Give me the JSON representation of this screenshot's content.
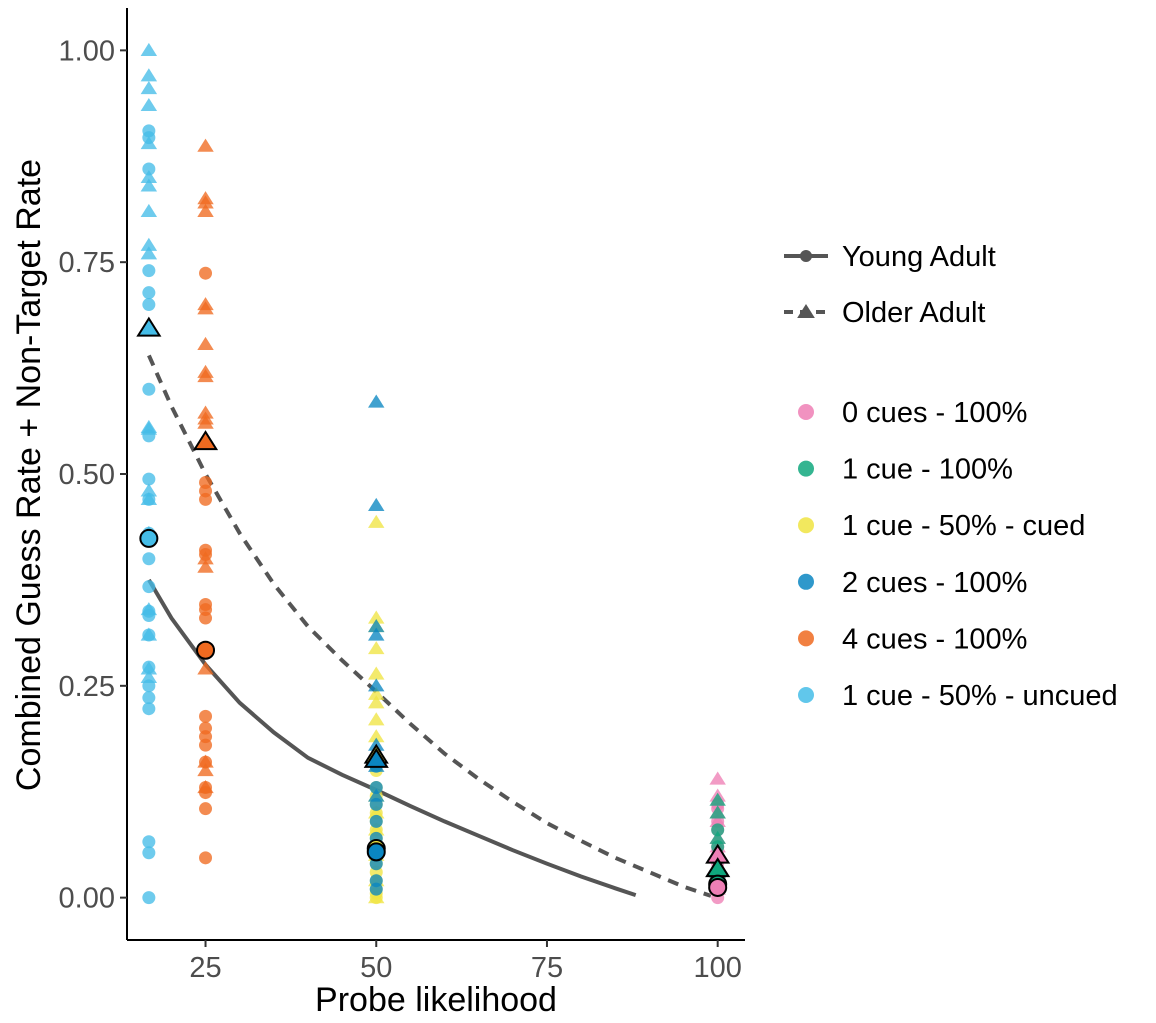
{
  "chart_data": {
    "type": "scatter",
    "xlabel": "Probe likelihood",
    "ylabel": "Combined Guess Rate + Non-Target Rate",
    "xlim": [
      13.5,
      104
    ],
    "ylim": [
      -0.05,
      1.05
    ],
    "x_ticks": [
      25,
      50,
      75,
      100
    ],
    "x_tick_labels": [
      "25",
      "50",
      "75",
      "100"
    ],
    "y_ticks": [
      0,
      0.25,
      0.5,
      0.75,
      1.0
    ],
    "y_tick_labels": [
      "0.00",
      "0.25",
      "0.50",
      "0.75",
      "1.00"
    ],
    "grid": false,
    "legend_position": "right",
    "legend_age": [
      {
        "label": "Young Adult",
        "shape": "circle",
        "line": "solid"
      },
      {
        "label": "Older Adult",
        "shape": "triangle",
        "line": "dashed"
      }
    ],
    "conditions": [
      {
        "label": "0 cues - 100%",
        "color": "#ee7fb5"
      },
      {
        "label": "1 cue - 100%",
        "color": "#10a87e"
      },
      {
        "label": "1 cue - 50% - cued",
        "color": "#f0e442"
      },
      {
        "label": "2 cues - 100%",
        "color": "#0a86c2"
      },
      {
        "label": "4 cues - 100%",
        "color": "#ef6a20"
      },
      {
        "label": "1 cue - 50% - uncued",
        "color": "#45bde8"
      }
    ],
    "fit_lines": [
      {
        "group": "Young Adult",
        "style": "solid",
        "color": "#555555",
        "points": [
          [
            16.7,
            0.375
          ],
          [
            20,
            0.33
          ],
          [
            25,
            0.275
          ],
          [
            30,
            0.23
          ],
          [
            35,
            0.195
          ],
          [
            40,
            0.165
          ],
          [
            45,
            0.145
          ],
          [
            50,
            0.127
          ],
          [
            55,
            0.108
          ],
          [
            60,
            0.09
          ],
          [
            65,
            0.073
          ],
          [
            70,
            0.056
          ],
          [
            75,
            0.04
          ],
          [
            80,
            0.025
          ],
          [
            85,
            0.011
          ],
          [
            88,
            0.003
          ]
        ]
      },
      {
        "group": "Older Adult",
        "style": "dashed",
        "color": "#555555",
        "points": [
          [
            16.7,
            0.64
          ],
          [
            20,
            0.58
          ],
          [
            25,
            0.5
          ],
          [
            30,
            0.43
          ],
          [
            35,
            0.37
          ],
          [
            40,
            0.32
          ],
          [
            45,
            0.28
          ],
          [
            50,
            0.243
          ],
          [
            55,
            0.205
          ],
          [
            60,
            0.17
          ],
          [
            65,
            0.14
          ],
          [
            70,
            0.113
          ],
          [
            75,
            0.088
          ],
          [
            80,
            0.067
          ],
          [
            85,
            0.047
          ],
          [
            90,
            0.03
          ],
          [
            95,
            0.013
          ],
          [
            99,
            0.002
          ]
        ]
      }
    ],
    "series": [
      {
        "condition": "1 cue - 50% - uncued",
        "group": "Young Adult",
        "x": 16.7,
        "values": [
          0.905,
          0.897,
          0.86,
          0.74,
          0.714,
          0.7,
          0.6,
          0.545,
          0.494,
          0.47,
          0.43,
          0.4,
          0.367,
          0.338,
          0.333,
          0.31,
          0.272,
          0.25,
          0.236,
          0.223,
          0.066,
          0.053,
          0.0
        ]
      },
      {
        "condition": "1 cue - 50% - uncued",
        "group": "Older Adult",
        "x": 16.7,
        "values": [
          1.0,
          0.97,
          0.955,
          0.935,
          0.89,
          0.85,
          0.84,
          0.81,
          0.77,
          0.76,
          0.555,
          0.553,
          0.48,
          0.47,
          0.43,
          0.34,
          0.31,
          0.27,
          0.26
        ]
      },
      {
        "condition": "4 cues - 100%",
        "group": "Young Adult",
        "x": 25,
        "values": [
          0.737,
          0.49,
          0.48,
          0.47,
          0.41,
          0.405,
          0.346,
          0.34,
          0.33,
          0.214,
          0.2,
          0.19,
          0.18,
          0.16,
          0.13,
          0.124,
          0.105,
          0.047
        ]
      },
      {
        "condition": "4 cues - 100%",
        "group": "Older Adult",
        "x": 25,
        "values": [
          0.887,
          0.825,
          0.82,
          0.81,
          0.7,
          0.695,
          0.653,
          0.62,
          0.615,
          0.572,
          0.565,
          0.56,
          0.4,
          0.39,
          0.27,
          0.16,
          0.15,
          0.13
        ]
      },
      {
        "condition": "1 cue - 50% - cued",
        "group": "Young Adult",
        "x": 50,
        "values": [
          0.15,
          0.13,
          0.12,
          0.11,
          0.1,
          0.09,
          0.08,
          0.07,
          0.06,
          0.05,
          0.04,
          0.03,
          0.02,
          0.01,
          0.005,
          0.0
        ]
      },
      {
        "condition": "1 cue - 50% - cued",
        "group": "Older Adult",
        "x": 50,
        "values": [
          0.443,
          0.33,
          0.32,
          0.294,
          0.264,
          0.24,
          0.23,
          0.21,
          0.19,
          0.16,
          0.12,
          0.1,
          0.08,
          0.05,
          0.02,
          0.0
        ]
      },
      {
        "condition": "2 cues - 100%",
        "group": "Young Adult",
        "x": 50,
        "values": [
          0.155,
          0.13,
          0.11,
          0.09,
          0.07,
          0.05,
          0.04,
          0.02,
          0.01
        ]
      },
      {
        "condition": "2 cues - 100%",
        "group": "Older Adult",
        "x": 50,
        "values": [
          0.585,
          0.463,
          0.32,
          0.31,
          0.25,
          0.18,
          0.155,
          0.12
        ]
      },
      {
        "condition": "0 cues - 100%",
        "group": "Young Adult",
        "x": 100,
        "values": [
          0.11,
          0.105,
          0.09,
          0.08,
          0.06,
          0.05,
          0.04,
          0.03,
          0.02,
          0.01,
          0.0
        ]
      },
      {
        "condition": "0 cues - 100%",
        "group": "Older Adult",
        "x": 100,
        "values": [
          0.14,
          0.12,
          0.1,
          0.09,
          0.07,
          0.06,
          0.05,
          0.03,
          0.01
        ]
      },
      {
        "condition": "1 cue - 100%",
        "group": "Young Adult",
        "x": 100,
        "values": [
          0.08,
          0.06,
          0.045,
          0.03,
          0.02,
          0.01
        ]
      },
      {
        "condition": "1 cue - 100%",
        "group": "Older Adult",
        "x": 100,
        "values": [
          0.115,
          0.1,
          0.07,
          0.05,
          0.03
        ]
      }
    ],
    "means": [
      {
        "condition": "1 cue - 50% - uncued",
        "group": "Young Adult",
        "x": 16.7,
        "y": 0.424
      },
      {
        "condition": "1 cue - 50% - uncued",
        "group": "Older Adult",
        "x": 16.7,
        "y": 0.672
      },
      {
        "condition": "4 cues - 100%",
        "group": "Young Adult",
        "x": 25,
        "y": 0.292
      },
      {
        "condition": "4 cues - 100%",
        "group": "Older Adult",
        "x": 25,
        "y": 0.538
      },
      {
        "condition": "1 cue - 50% - cued",
        "group": "Young Adult",
        "x": 50,
        "y": 0.058
      },
      {
        "condition": "2 cues - 100%",
        "group": "Young Adult",
        "x": 50,
        "y": 0.054
      },
      {
        "condition": "1 cue - 50% - cued",
        "group": "Older Adult",
        "x": 50,
        "y": 0.168
      },
      {
        "condition": "2 cues - 100%",
        "group": "Older Adult",
        "x": 50,
        "y": 0.163
      },
      {
        "condition": "0 cues - 100%",
        "group": "Older Adult",
        "x": 100,
        "y": 0.05
      },
      {
        "condition": "1 cue - 100%",
        "group": "Older Adult",
        "x": 100,
        "y": 0.034
      },
      {
        "condition": "1 cue - 100%",
        "group": "Young Adult",
        "x": 100,
        "y": 0.016
      },
      {
        "condition": "0 cues - 100%",
        "group": "Young Adult",
        "x": 100,
        "y": 0.012
      }
    ]
  }
}
